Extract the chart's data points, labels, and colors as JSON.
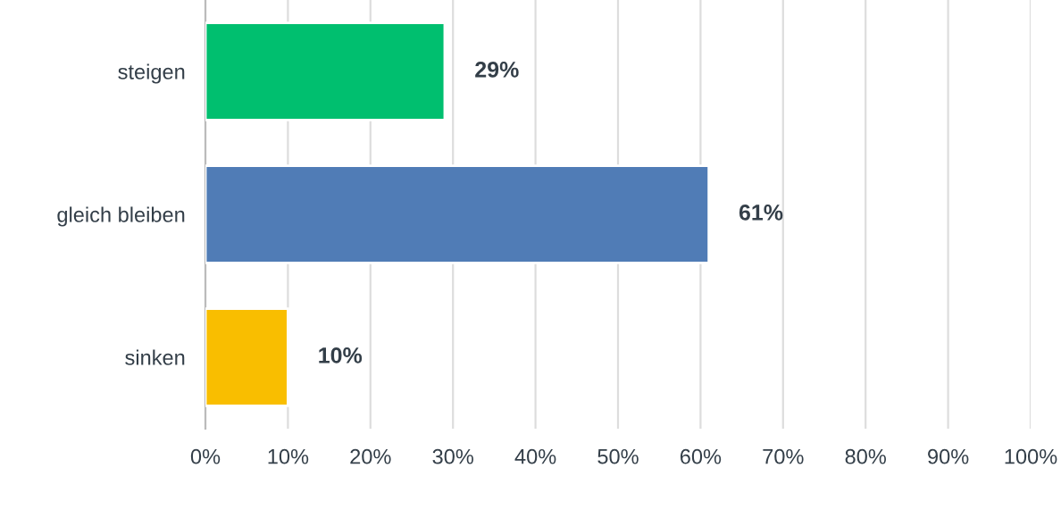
{
  "chart_data": {
    "type": "bar",
    "orientation": "horizontal",
    "categories": [
      "steigen",
      "gleich bleiben",
      "sinken"
    ],
    "values": [
      29,
      61,
      10
    ],
    "colors": [
      "#00bf6f",
      "#507cb6",
      "#f9be00"
    ],
    "value_labels": [
      "29%",
      "61%",
      "10%"
    ],
    "xlim": [
      0,
      100
    ],
    "xticks": [
      {
        "value": 0,
        "label": "0%"
      },
      {
        "value": 10,
        "label": "10%"
      },
      {
        "value": 20,
        "label": "20%"
      },
      {
        "value": 30,
        "label": "30%"
      },
      {
        "value": 40,
        "label": "40%"
      },
      {
        "value": 50,
        "label": "50%"
      },
      {
        "value": 60,
        "label": "60%"
      },
      {
        "value": 70,
        "label": "70%"
      },
      {
        "value": 80,
        "label": "80%"
      },
      {
        "value": 90,
        "label": "90%"
      },
      {
        "value": 100,
        "label": "100%"
      }
    ],
    "grid": "x"
  }
}
